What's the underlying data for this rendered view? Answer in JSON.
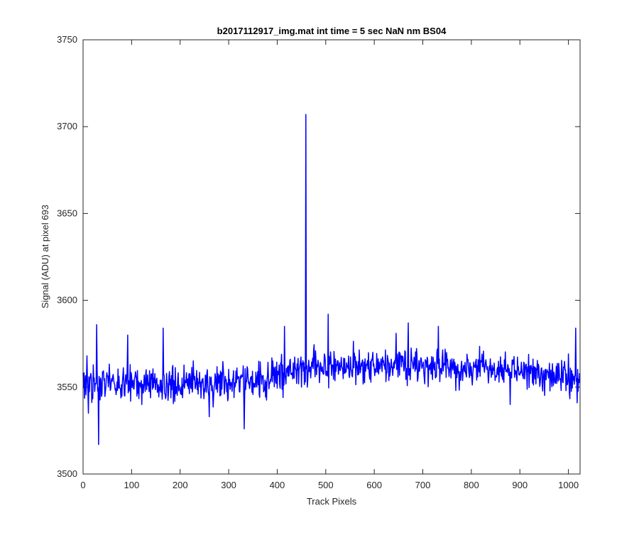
{
  "chart_data": {
    "type": "line",
    "title": "b2017112917_img.mat int time = 5 sec  NaN nm BS04",
    "xlabel": "Track Pixels",
    "ylabel": "Signal (ADU) at pixel 693",
    "xlim": [
      0,
      1024
    ],
    "ylim": [
      3500,
      3750
    ],
    "xticks": [
      0,
      100,
      200,
      300,
      400,
      500,
      600,
      700,
      800,
      900,
      1000
    ],
    "yticks": [
      3500,
      3550,
      3600,
      3650,
      3700,
      3750
    ],
    "grid": false,
    "box": true,
    "series": [
      {
        "color": "#0000ff",
        "noise_model": {
          "n_points": 1024,
          "baseline": [
            [
              0,
              3553
            ],
            [
              300,
              3552
            ],
            [
              400,
              3556
            ],
            [
              460,
              3562
            ],
            [
              700,
              3563
            ],
            [
              900,
              3560
            ],
            [
              1024,
              3554
            ]
          ],
          "noise_amplitude": 7
        },
        "notable_points": [
          {
            "x": 8,
            "y": 3568
          },
          {
            "x": 11,
            "y": 3535
          },
          {
            "x": 28,
            "y": 3586
          },
          {
            "x": 32,
            "y": 3517
          },
          {
            "x": 92,
            "y": 3580
          },
          {
            "x": 165,
            "y": 3584
          },
          {
            "x": 260,
            "y": 3533
          },
          {
            "x": 332,
            "y": 3526
          },
          {
            "x": 415,
            "y": 3585
          },
          {
            "x": 459,
            "y": 3707
          },
          {
            "x": 462,
            "y": 3550
          },
          {
            "x": 505,
            "y": 3592
          },
          {
            "x": 645,
            "y": 3581
          },
          {
            "x": 670,
            "y": 3587
          },
          {
            "x": 732,
            "y": 3585
          },
          {
            "x": 880,
            "y": 3540
          },
          {
            "x": 1015,
            "y": 3584
          },
          {
            "x": 1018,
            "y": 3541
          }
        ]
      }
    ]
  }
}
